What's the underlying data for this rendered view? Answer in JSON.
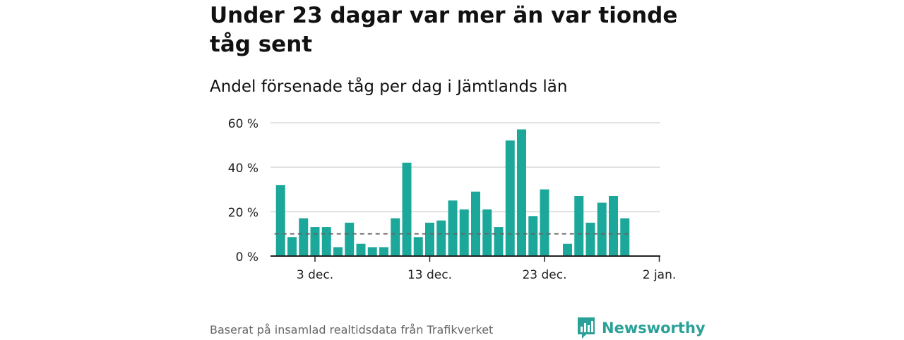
{
  "title": "Under 23 dagar var mer än var tionde tåg sent",
  "subtitle": "Andel försenade tåg per dag i Jämtlands län",
  "footer": "Baserat på insamlad realtidsdata från Trafikverket",
  "brand": "Newsworthy",
  "colors": {
    "bar": "#1ba89a",
    "brand": "#2aa198",
    "reference": "#666666"
  },
  "chart_data": {
    "type": "bar",
    "x": [
      "2023-11-30",
      "2023-12-01",
      "2023-12-02",
      "2023-12-03",
      "2023-12-04",
      "2023-12-05",
      "2023-12-06",
      "2023-12-07",
      "2023-12-08",
      "2023-12-09",
      "2023-12-10",
      "2023-12-11",
      "2023-12-12",
      "2023-12-13",
      "2023-12-14",
      "2023-12-15",
      "2023-12-16",
      "2023-12-17",
      "2023-12-18",
      "2023-12-19",
      "2023-12-20",
      "2023-12-21",
      "2023-12-22",
      "2023-12-23",
      "2023-12-24",
      "2023-12-25",
      "2023-12-26",
      "2023-12-27",
      "2023-12-28",
      "2023-12-29",
      "2023-12-30",
      "2023-12-31"
    ],
    "values": [
      32,
      8.5,
      17,
      13,
      13,
      4,
      15,
      5.5,
      4,
      4,
      17,
      42,
      8.5,
      15,
      16,
      25,
      21,
      29,
      21,
      13,
      52,
      57,
      18,
      30,
      null,
      5.5,
      27,
      15,
      24,
      27,
      17,
      null
    ],
    "reference_line": 10,
    "ylim": [
      0,
      60
    ],
    "yticks": [
      0,
      20,
      40,
      60
    ],
    "ytick_labels": [
      "0 %",
      "20 %",
      "40 %",
      "60 %"
    ],
    "xticks": [
      {
        "date": "2023-12-03",
        "label": "3 dec."
      },
      {
        "date": "2023-12-13",
        "label": "13 dec."
      },
      {
        "date": "2023-12-23",
        "label": "23 dec."
      },
      {
        "date": "2024-01-02",
        "label": "2 jan."
      }
    ],
    "xlabel": "",
    "ylabel": "",
    "grid": true
  }
}
